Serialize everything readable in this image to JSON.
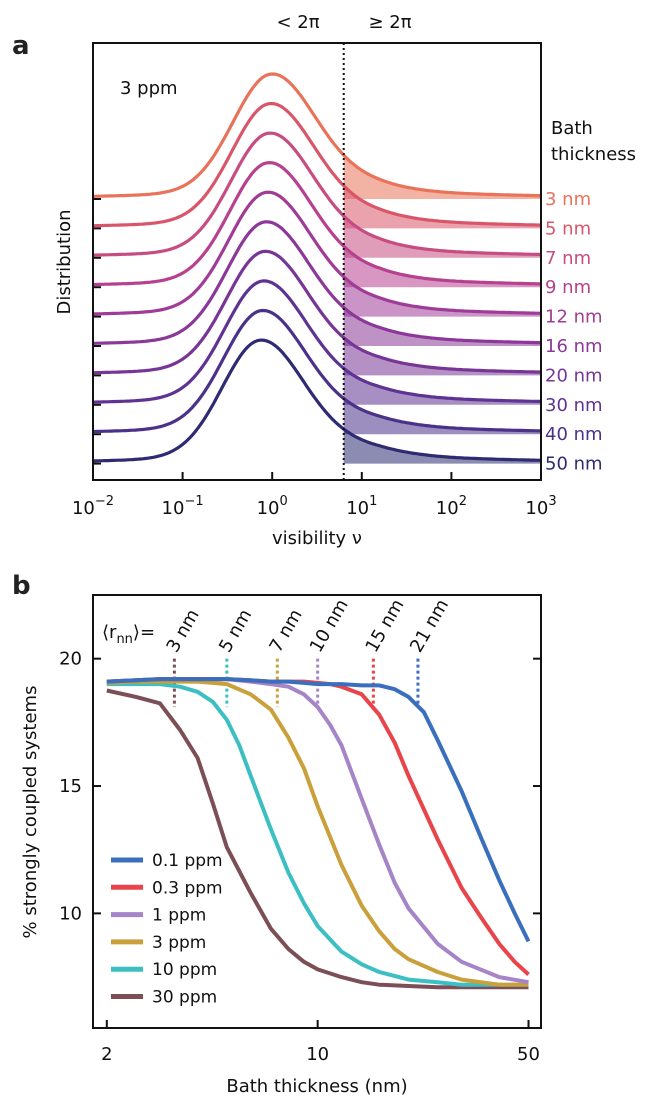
{
  "panel_a": {
    "letter": "a",
    "region_left": "< 2π",
    "region_right": "≥ 2π",
    "concentration": "3 ppm",
    "legend_title_line1": "Bath",
    "legend_title_line2": "thickness",
    "xlabel": "visibility ν",
    "ylabel": "Distribution"
  },
  "panel_b": {
    "letter": "b",
    "rnn_prefix": "⟨r",
    "rnn_sub": "nn",
    "rnn_suffix": "⟩=",
    "xlabel": "Bath thickness (nm)",
    "ylabel": "% strongly coupled systems"
  },
  "chart_data": [
    {
      "type": "line",
      "title": "",
      "xlabel": "visibility ν",
      "ylabel": "Distribution",
      "x_scale": "log",
      "xlim": [
        0.01,
        1000
      ],
      "x_ticks": [
        0.01,
        0.1,
        1,
        10,
        100,
        1000
      ],
      "x_tick_labels": [
        {
          "base": "10",
          "exp": "−2"
        },
        {
          "base": "10",
          "exp": "−1"
        },
        {
          "base": "10",
          "exp": "0"
        },
        {
          "base": "10",
          "exp": "1"
        },
        {
          "base": "10",
          "exp": "2"
        },
        {
          "base": "10",
          "exp": "3"
        }
      ],
      "threshold_x": 6.2832,
      "threshold_style": "dotted",
      "shading": "area under each curve for ν ≥ 2π",
      "curve_peak_x": [
        0.95,
        0.92,
        0.9,
        0.88,
        0.85,
        0.82,
        0.8,
        0.77,
        0.75,
        0.72
      ],
      "series": [
        {
          "name": "3 nm",
          "color": "#e8735a"
        },
        {
          "name": "5 nm",
          "color": "#d9566a"
        },
        {
          "name": "7 nm",
          "color": "#c74c82"
        },
        {
          "name": "9 nm",
          "color": "#b6418f"
        },
        {
          "name": "12 nm",
          "color": "#a03c97"
        },
        {
          "name": "16 nm",
          "color": "#8b3898"
        },
        {
          "name": "20 nm",
          "color": "#773596"
        },
        {
          "name": "30 nm",
          "color": "#5f3391"
        },
        {
          "name": "40 nm",
          "color": "#4b3189"
        },
        {
          "name": "50 nm",
          "color": "#2e2b72"
        }
      ]
    },
    {
      "type": "line",
      "title": "",
      "xlabel": "Bath thickness (nm)",
      "ylabel": "% strongly coupled systems",
      "x_scale": "log",
      "xlim": [
        1.8,
        55
      ],
      "ylim": [
        5.5,
        22.5
      ],
      "x_ticks": [
        2,
        10,
        50
      ],
      "y_ticks": [
        10,
        15,
        20
      ],
      "rnn_markers": [
        {
          "label": "3 nm",
          "x": 3.35,
          "color": "#7b4f55"
        },
        {
          "label": "5 nm",
          "x": 5.0,
          "color": "#3cbfc2"
        },
        {
          "label": "7 nm",
          "x": 7.35,
          "color": "#c9a03a"
        },
        {
          "label": "10 nm",
          "x": 10.0,
          "color": "#a584c8"
        },
        {
          "label": "15 nm",
          "x": 15.3,
          "color": "#e8444a"
        },
        {
          "label": "21 nm",
          "x": 21.5,
          "color": "#3b6fbd"
        }
      ],
      "series": [
        {
          "name": "0.1 ppm",
          "color": "#3a6fbe",
          "x": [
            2,
            2.5,
            3,
            3.5,
            4,
            5,
            6,
            7,
            8,
            9,
            10,
            12,
            14,
            16,
            18,
            20,
            22.5,
            25,
            30,
            35,
            40,
            45,
            50
          ],
          "y": [
            19.1,
            19.15,
            19.2,
            19.2,
            19.2,
            19.2,
            19.15,
            19.1,
            19.1,
            19.05,
            19.0,
            19.0,
            18.95,
            18.95,
            18.8,
            18.5,
            17.9,
            16.8,
            14.8,
            12.9,
            11.3,
            10.0,
            8.9
          ]
        },
        {
          "name": "0.3 ppm",
          "color": "#e8444a",
          "x": [
            2,
            2.5,
            3,
            3.5,
            4,
            5,
            6,
            7,
            8,
            9,
            10,
            11,
            12,
            14,
            16,
            18,
            20,
            25,
            30,
            35,
            40,
            45,
            50
          ],
          "y": [
            19.1,
            19.15,
            19.2,
            19.2,
            19.2,
            19.2,
            19.15,
            19.1,
            19.1,
            19.1,
            19.05,
            19.0,
            18.9,
            18.6,
            17.8,
            16.7,
            15.4,
            12.9,
            11.0,
            9.8,
            8.8,
            8.1,
            7.6
          ]
        },
        {
          "name": "1 ppm",
          "color": "#a584c8",
          "x": [
            2,
            2.5,
            3,
            3.5,
            4,
            5,
            6,
            7,
            8,
            9,
            10,
            11,
            12,
            14,
            16,
            18,
            20,
            25,
            30,
            40,
            50
          ],
          "y": [
            19.1,
            19.15,
            19.2,
            19.2,
            19.2,
            19.2,
            19.1,
            19.0,
            18.9,
            18.6,
            18.1,
            17.4,
            16.6,
            14.5,
            12.7,
            11.2,
            10.2,
            8.8,
            8.1,
            7.5,
            7.3
          ]
        },
        {
          "name": "3 ppm",
          "color": "#c9a03a",
          "x": [
            2,
            2.5,
            3,
            3.5,
            4,
            4.5,
            5,
            6,
            7,
            8,
            9,
            10,
            12,
            14,
            16,
            18,
            20,
            25,
            30,
            40,
            50
          ],
          "y": [
            19.05,
            19.1,
            19.1,
            19.1,
            19.1,
            19.05,
            19.0,
            18.6,
            18.0,
            16.9,
            15.7,
            14.2,
            11.9,
            10.3,
            9.3,
            8.6,
            8.2,
            7.7,
            7.4,
            7.2,
            7.2
          ]
        },
        {
          "name": "10 ppm",
          "color": "#3cbfc2",
          "x": [
            2,
            2.5,
            3,
            3.5,
            4,
            4.5,
            5,
            5.5,
            6,
            7,
            8,
            9,
            10,
            12,
            14,
            16,
            20,
            25,
            30,
            40,
            50
          ],
          "y": [
            19.0,
            19.0,
            19.0,
            18.9,
            18.7,
            18.3,
            17.6,
            16.6,
            15.4,
            13.3,
            11.6,
            10.4,
            9.5,
            8.5,
            8.0,
            7.7,
            7.4,
            7.3,
            7.2,
            7.2,
            7.2
          ]
        },
        {
          "name": "30 ppm",
          "color": "#7b4f55",
          "x": [
            2,
            2.5,
            3,
            3.5,
            4,
            4.5,
            5,
            6,
            7,
            8,
            9,
            10,
            12,
            14,
            16,
            20,
            25,
            30,
            40,
            50
          ],
          "y": [
            18.75,
            18.5,
            18.25,
            17.2,
            16.1,
            14.3,
            12.6,
            10.8,
            9.4,
            8.6,
            8.1,
            7.8,
            7.5,
            7.3,
            7.2,
            7.15,
            7.1,
            7.1,
            7.1,
            7.1
          ]
        }
      ]
    }
  ]
}
